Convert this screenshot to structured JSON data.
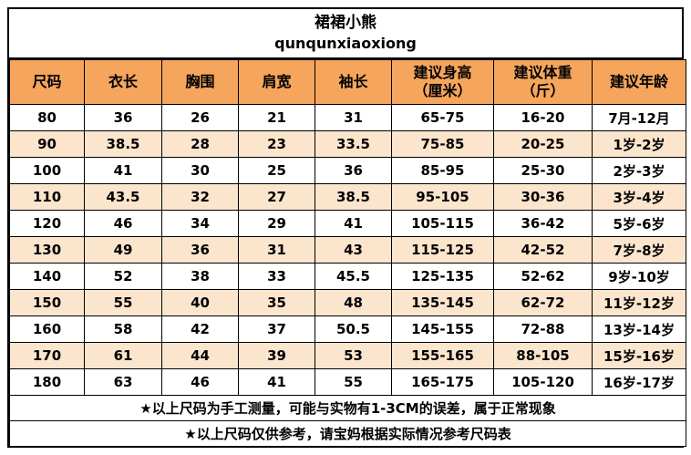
{
  "title": {
    "line1": "裙裙小熊",
    "line2": "qunqunxiaoxiong"
  },
  "notes": [
    "★以上尺码为手工测量，可能与实物有1-3CM的误差，属于正常现象",
    "★以上尺码仅供参考，请宝妈根据实际情况参考尺码表"
  ],
  "colors": {
    "header_bg": "#f6a55c",
    "alt_row_bg": "#fbe5cd",
    "border": "#000000",
    "text": "#000000"
  },
  "chart_data": {
    "type": "table",
    "title": "裙裙小熊 qunqunxiaoxiong 尺码表",
    "columns": [
      "尺码",
      "衣长",
      "胸围",
      "肩宽",
      "袖长",
      "建议身高\n（厘米）",
      "建议体重\n（斤）",
      "建议年龄"
    ],
    "rows": [
      [
        "80",
        "36",
        "26",
        "21",
        "31",
        "65-75",
        "16-20",
        "7月-12月"
      ],
      [
        "90",
        "38.5",
        "28",
        "23",
        "33.5",
        "75-85",
        "20-25",
        "1岁-2岁"
      ],
      [
        "100",
        "41",
        "30",
        "25",
        "36",
        "85-95",
        "25-30",
        "2岁-3岁"
      ],
      [
        "110",
        "43.5",
        "32",
        "27",
        "38.5",
        "95-105",
        "30-36",
        "3岁-4岁"
      ],
      [
        "120",
        "46",
        "34",
        "29",
        "41",
        "105-115",
        "36-42",
        "5岁-6岁"
      ],
      [
        "130",
        "49",
        "36",
        "31",
        "43",
        "115-125",
        "42-52",
        "7岁-8岁"
      ],
      [
        "140",
        "52",
        "38",
        "33",
        "45.5",
        "125-135",
        "52-62",
        "9岁-10岁"
      ],
      [
        "150",
        "55",
        "40",
        "35",
        "48",
        "135-145",
        "62-72",
        "11岁-12岁"
      ],
      [
        "160",
        "58",
        "42",
        "37",
        "50.5",
        "145-155",
        "72-88",
        "13岁-14岁"
      ],
      [
        "170",
        "61",
        "44",
        "39",
        "53",
        "155-165",
        "88-105",
        "15岁-16岁"
      ],
      [
        "180",
        "63",
        "46",
        "41",
        "55",
        "165-175",
        "105-120",
        "16岁-17岁"
      ]
    ]
  }
}
